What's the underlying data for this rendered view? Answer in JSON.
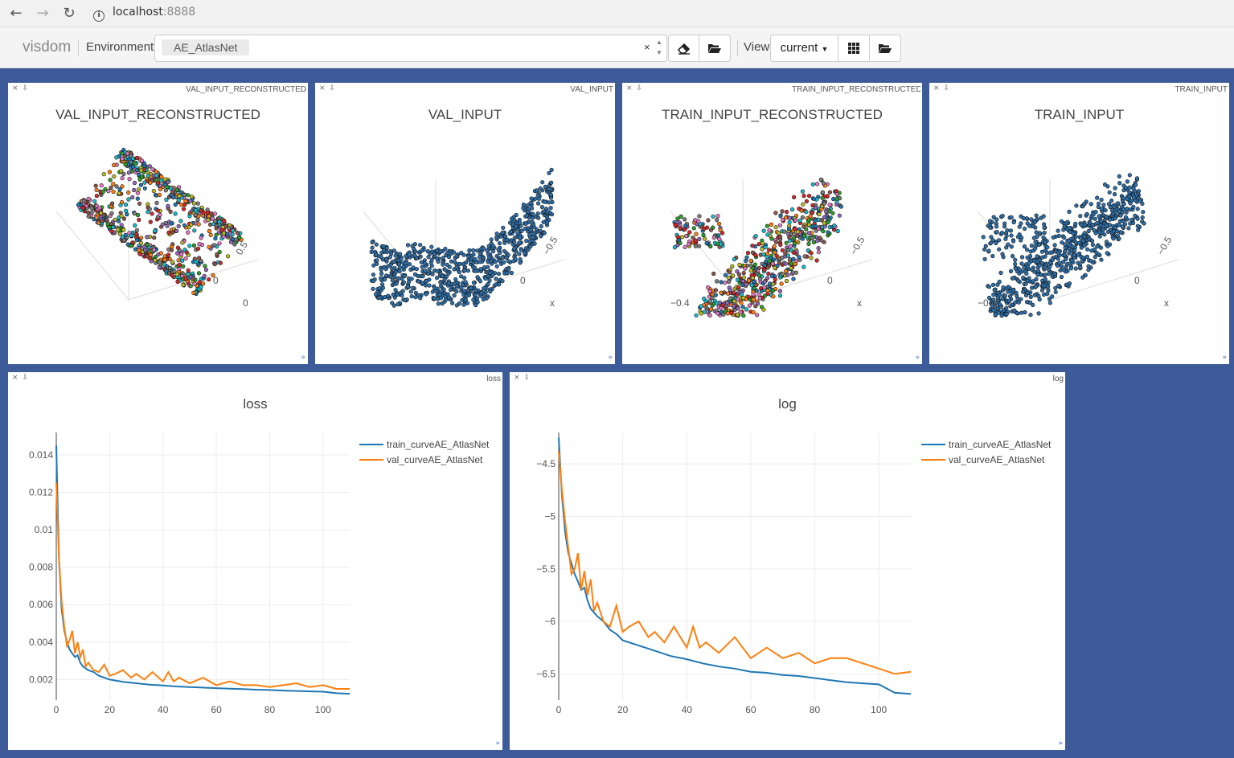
{
  "browser": {
    "host": "localhost",
    "port": ":8888",
    "back_icon": "arrow-left",
    "forward_icon": "arrow-right",
    "reload_icon": "reload"
  },
  "toolbar": {
    "brand": "visdom",
    "environment_label": "Environment",
    "environment_value": "AE_AtlasNet",
    "clear_symbol": "×",
    "view_label": "View",
    "view_value": "current"
  },
  "panes": [
    {
      "id": "VAL_INPUT_RECONSTRUCTED",
      "name": "VAL_INPUT_RECONSTRUCTED",
      "title": "VAL_INPUT_RECONSTRUCTED",
      "colorful": true,
      "ticks": [
        "0.5",
        "0",
        "0"
      ]
    },
    {
      "id": "VAL_INPUT",
      "name": "VAL_INPUT",
      "title": "VAL_INPUT",
      "colorful": false,
      "ticks": [
        "−0.5",
        "0",
        "x"
      ]
    },
    {
      "id": "TRAIN_INPUT_RECONSTRUCTED",
      "name": "TRAIN_INPUT_RECONSTRUCTED",
      "title": "TRAIN_INPUT_RECONSTRUCTED",
      "colorful": true,
      "ticks": [
        "−0.5",
        "0",
        "x",
        "−0.4"
      ]
    },
    {
      "id": "TRAIN_INPUT",
      "name": "TRAIN_INPUT",
      "title": "TRAIN_INPUT",
      "colorful": false,
      "ticks": [
        "−0.5",
        "0",
        "x",
        "−0.4"
      ]
    }
  ],
  "line_panes": [
    {
      "name": "loss",
      "title": "loss"
    },
    {
      "name": "log",
      "title": "log"
    }
  ],
  "chart_data": [
    {
      "type": "line",
      "title": "loss",
      "xlim": [
        0,
        110
      ],
      "ylim": [
        0.0009,
        0.0152
      ],
      "xticks": [
        0,
        20,
        40,
        60,
        80,
        100
      ],
      "yticks": [
        0.002,
        0.004,
        0.006,
        0.008,
        0.01,
        0.012,
        0.014
      ],
      "ytick_labels": [
        "0.002",
        "0.004",
        "0.006",
        "0.008",
        "0.01",
        "0.012",
        "0.014"
      ],
      "legend_position": "top-right",
      "series": [
        {
          "name": "train_curveAE_AtlasNet",
          "color": "#1f77b4",
          "x": [
            0,
            1,
            2,
            3,
            4,
            5,
            6,
            7,
            8,
            9,
            10,
            12,
            14,
            16,
            18,
            20,
            25,
            30,
            35,
            40,
            45,
            50,
            55,
            60,
            65,
            70,
            75,
            80,
            85,
            90,
            95,
            100,
            105,
            110
          ],
          "y": [
            0.0145,
            0.0085,
            0.0058,
            0.0046,
            0.004,
            0.0036,
            0.0034,
            0.0032,
            0.0033,
            0.0029,
            0.0027,
            0.0025,
            0.0024,
            0.0022,
            0.0021,
            0.002,
            0.00188,
            0.0018,
            0.00173,
            0.00168,
            0.00163,
            0.0016,
            0.00157,
            0.00154,
            0.00151,
            0.00149,
            0.00146,
            0.00144,
            0.00141,
            0.00139,
            0.00137,
            0.00135,
            0.00127,
            0.00124
          ]
        },
        {
          "name": "val_curveAE_AtlasNet",
          "color": "#ff7f0e",
          "x": [
            0,
            1,
            2,
            3,
            4,
            5,
            6,
            7,
            8,
            9,
            10,
            11,
            12,
            14,
            16,
            18,
            20,
            22,
            25,
            28,
            30,
            33,
            36,
            40,
            42,
            44,
            46,
            50,
            55,
            60,
            65,
            70,
            75,
            80,
            85,
            90,
            95,
            100,
            105,
            110
          ],
          "y": [
            0.0125,
            0.0085,
            0.0062,
            0.0048,
            0.0038,
            0.0041,
            0.0046,
            0.0034,
            0.004,
            0.0032,
            0.0036,
            0.0027,
            0.0029,
            0.0025,
            0.0024,
            0.0028,
            0.0022,
            0.0023,
            0.0025,
            0.0021,
            0.0023,
            0.002,
            0.0024,
            0.0019,
            0.0024,
            0.0019,
            0.0021,
            0.0018,
            0.0021,
            0.0017,
            0.0019,
            0.0017,
            0.0017,
            0.0016,
            0.0017,
            0.0018,
            0.0016,
            0.0017,
            0.0015,
            0.0015
          ]
        }
      ]
    },
    {
      "type": "line",
      "title": "log",
      "xlim": [
        0,
        110
      ],
      "ylim": [
        -6.75,
        -4.2
      ],
      "xticks": [
        0,
        20,
        40,
        60,
        80,
        100
      ],
      "yticks": [
        -6.5,
        -6,
        -5.5,
        -5,
        -4.5
      ],
      "ytick_labels": [
        "−6.5",
        "−6",
        "−5.5",
        "−5",
        "−4.5"
      ],
      "legend_position": "top-right",
      "series": [
        {
          "name": "train_curveAE_AtlasNet",
          "color": "#1f77b4",
          "x": [
            0,
            1,
            2,
            3,
            4,
            5,
            6,
            7,
            8,
            9,
            10,
            12,
            14,
            16,
            18,
            20,
            25,
            30,
            35,
            40,
            45,
            50,
            55,
            60,
            65,
            70,
            75,
            80,
            85,
            90,
            95,
            100,
            105,
            110
          ],
          "y": [
            -4.25,
            -4.8,
            -5.15,
            -5.35,
            -5.45,
            -5.55,
            -5.62,
            -5.7,
            -5.68,
            -5.8,
            -5.88,
            -5.95,
            -6.0,
            -6.08,
            -6.12,
            -6.18,
            -6.23,
            -6.28,
            -6.33,
            -6.36,
            -6.4,
            -6.43,
            -6.45,
            -6.48,
            -6.49,
            -6.51,
            -6.52,
            -6.54,
            -6.56,
            -6.58,
            -6.59,
            -6.6,
            -6.68,
            -6.69
          ]
        },
        {
          "name": "val_curveAE_AtlasNet",
          "color": "#ff7f0e",
          "x": [
            0,
            1,
            2,
            3,
            4,
            5,
            6,
            7,
            8,
            9,
            10,
            11,
            12,
            14,
            16,
            18,
            20,
            22,
            25,
            28,
            30,
            33,
            36,
            40,
            42,
            44,
            46,
            50,
            55,
            60,
            65,
            70,
            75,
            80,
            85,
            90,
            95,
            100,
            105,
            110
          ],
          "y": [
            -4.38,
            -4.75,
            -5.05,
            -5.3,
            -5.55,
            -5.5,
            -5.35,
            -5.7,
            -5.52,
            -5.75,
            -5.6,
            -5.9,
            -5.82,
            -6.0,
            -6.05,
            -5.85,
            -6.1,
            -6.05,
            -6.0,
            -6.15,
            -6.1,
            -6.2,
            -6.05,
            -6.25,
            -6.05,
            -6.25,
            -6.2,
            -6.3,
            -6.15,
            -6.35,
            -6.25,
            -6.35,
            -6.3,
            -6.4,
            -6.35,
            -6.35,
            -6.4,
            -6.45,
            -6.5,
            -6.48
          ]
        }
      ]
    }
  ]
}
